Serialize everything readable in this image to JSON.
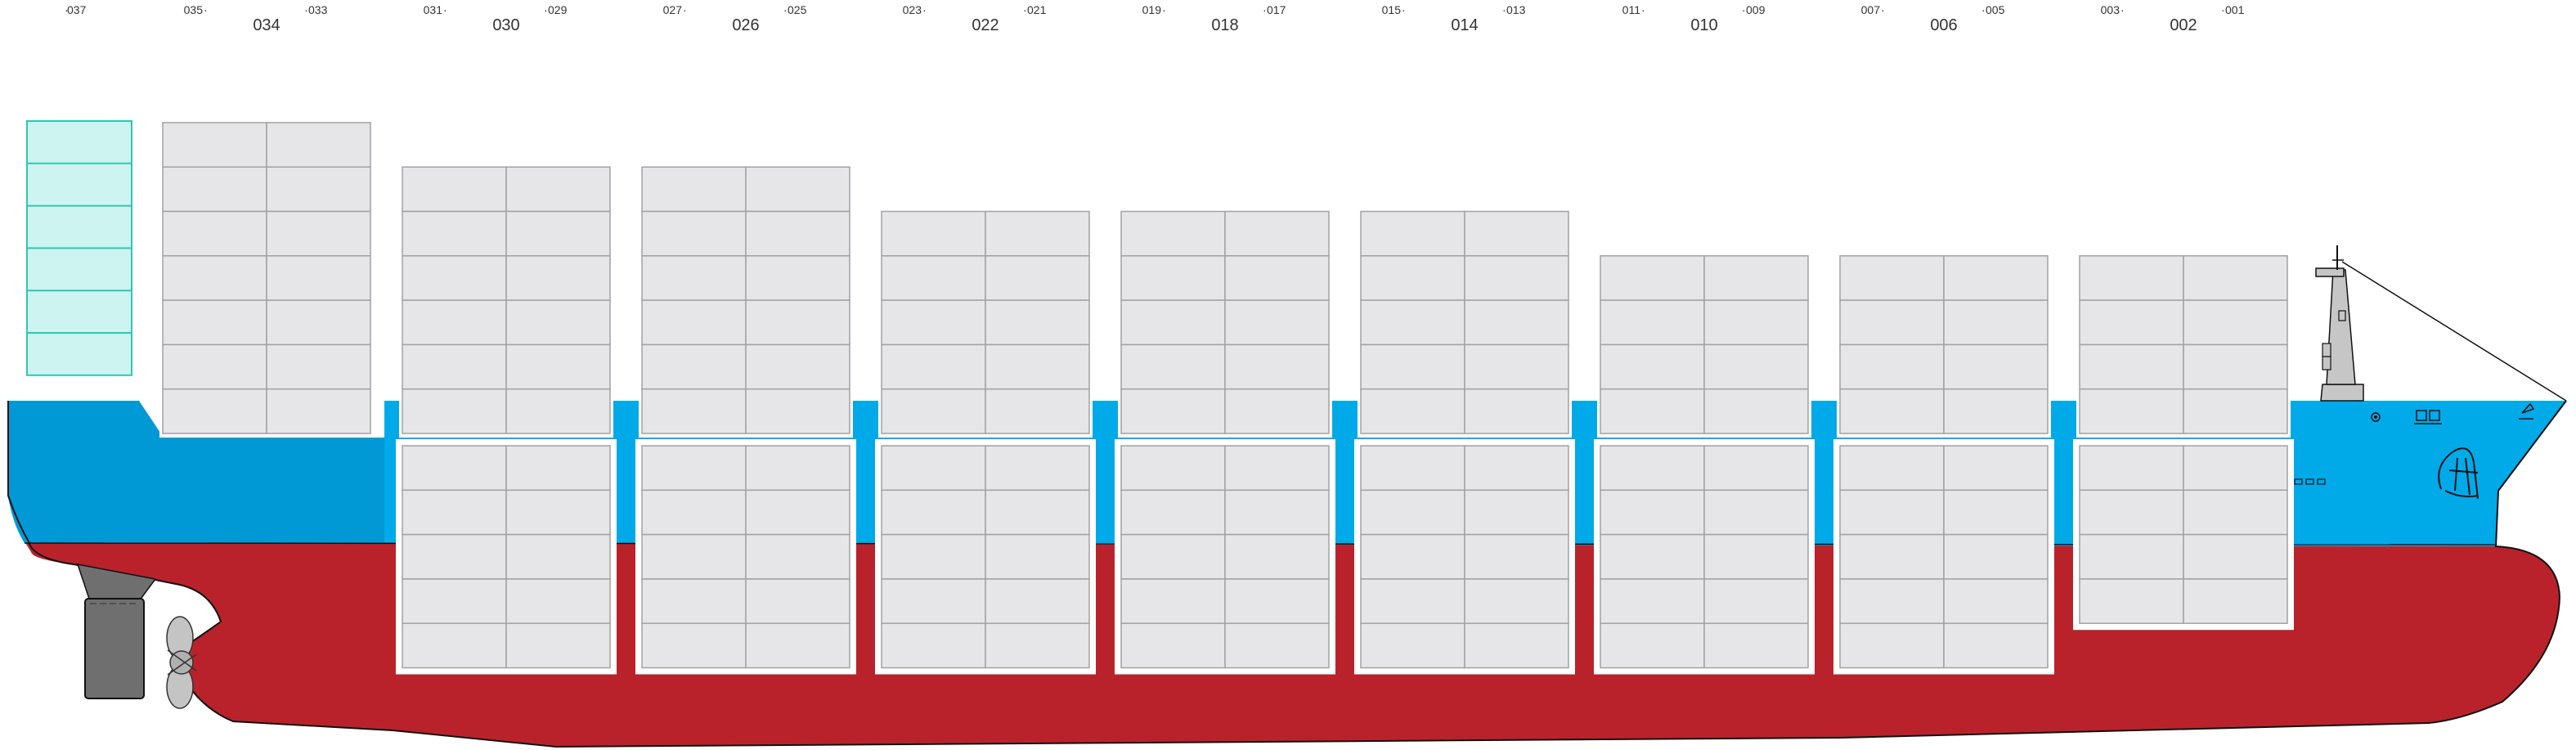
{
  "colors": {
    "hull_red": "#ba222b",
    "hull_blue_aft": "#0099d6",
    "hull_blue_fwd": "#00aae9",
    "container": "#e6e6e8",
    "container_line": "#a2a2a6",
    "reefer": "#cdf4f0",
    "reefer_line": "#2fc7b2",
    "hatch_frame": "#ffffff",
    "rudder": "#6f6f6f",
    "propeller": "#c4c4c4"
  },
  "bays": [
    {
      "label": "034",
      "left_label": "035",
      "right_label": "033",
      "deck_tiers": 7,
      "hold_tiers": 0
    },
    {
      "label": "030",
      "left_label": "031",
      "right_label": "029",
      "deck_tiers": 6,
      "hold_tiers": 5
    },
    {
      "label": "026",
      "left_label": "027",
      "right_label": "025",
      "deck_tiers": 6,
      "hold_tiers": 5
    },
    {
      "label": "022",
      "left_label": "023",
      "right_label": "021",
      "deck_tiers": 5,
      "hold_tiers": 5
    },
    {
      "label": "018",
      "left_label": "019",
      "right_label": "017",
      "deck_tiers": 5,
      "hold_tiers": 5
    },
    {
      "label": "014",
      "left_label": "015",
      "right_label": "013",
      "deck_tiers": 5,
      "hold_tiers": 5
    },
    {
      "label": "010",
      "left_label": "011",
      "right_label": "009",
      "deck_tiers": 4,
      "hold_tiers": 5
    },
    {
      "label": "006",
      "left_label": "007",
      "right_label": "005",
      "deck_tiers": 4,
      "hold_tiers": 5
    },
    {
      "label": "002",
      "left_label": "003",
      "right_label": "001",
      "deck_tiers": 4,
      "hold_tiers": 4
    }
  ],
  "aft_bay": {
    "label": "037",
    "reefer_tiers": 6
  }
}
